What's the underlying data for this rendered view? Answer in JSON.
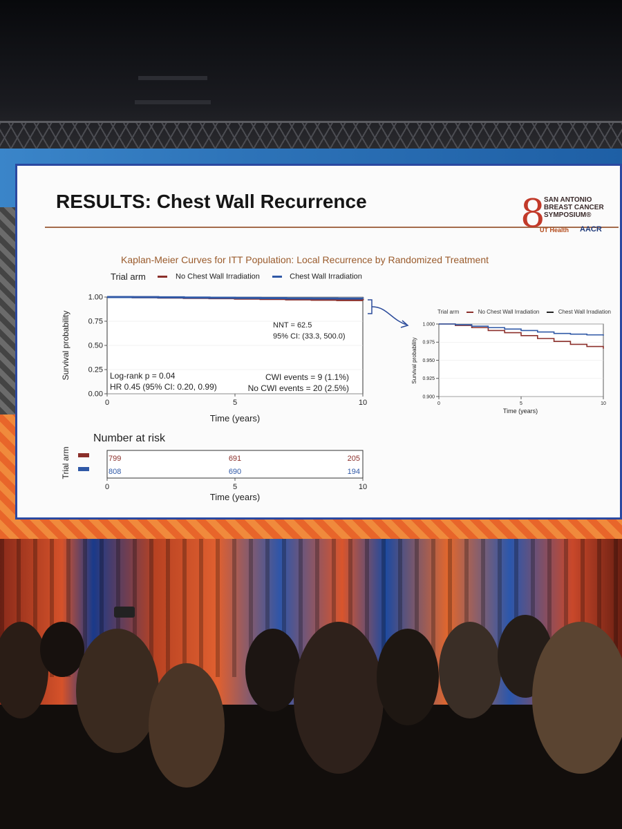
{
  "slide": {
    "title": "RESULTS: Chest Wall Recurrence",
    "subtitle": "Kaplan-Meier Curves for ITT Population:  Local Recurrence by Randomized Treatment",
    "logo": {
      "text_lines": [
        "SAN ANTONIO",
        "BREAST CANCER",
        "SYMPOSIUM®"
      ],
      "ut": "UT Health",
      "aacr": "AACR"
    },
    "legend": {
      "title": "Trial arm",
      "items": [
        "No Chest Wall Irradiation",
        "Chest Wall Irradiation"
      ]
    }
  },
  "colors": {
    "no_cwi": "#8b2f2a",
    "cwi": "#2f58a6"
  },
  "chart_data": [
    {
      "type": "line",
      "ylabel": "Survival probability",
      "xlabel": "Time (years)",
      "xlim": [
        0,
        10
      ],
      "ylim": [
        0,
        1
      ],
      "x_ticks": [
        0,
        5,
        10
      ],
      "y_ticks": [
        "0.00",
        "0.25",
        "0.50",
        "0.75",
        "1.00"
      ],
      "series": [
        {
          "name": "No Chest Wall Irradiation",
          "x": [
            0,
            1,
            2,
            3,
            4,
            5,
            6,
            7,
            8,
            9,
            10
          ],
          "y": [
            1.0,
            0.998,
            0.995,
            0.991,
            0.988,
            0.984,
            0.98,
            0.976,
            0.972,
            0.969,
            0.966
          ]
        },
        {
          "name": "Chest Wall Irradiation",
          "x": [
            0,
            1,
            2,
            3,
            4,
            5,
            6,
            7,
            8,
            9,
            10
          ],
          "y": [
            1.0,
            0.999,
            0.997,
            0.995,
            0.993,
            0.991,
            0.989,
            0.987,
            0.986,
            0.985,
            0.984
          ]
        }
      ],
      "annotations": {
        "nnt": "NNT = 62.5",
        "nnt_ci": "95% CI: (33.3, 500.0)",
        "logrank": "Log-rank p = 0.04",
        "hr": "HR 0.45 (95% CI: 0.20, 0.99)",
        "cwi_events": "CWI events = 9 (1.1%)",
        "no_cwi_events": "No CWI events = 20 (2.5%)"
      }
    },
    {
      "type": "line",
      "ylabel": "Survival probability",
      "xlabel": "Time (years)",
      "xlim": [
        0,
        10
      ],
      "ylim": [
        0.9,
        1.0
      ],
      "x_ticks": [
        0,
        5,
        10
      ],
      "y_ticks": [
        "0.900",
        "0.925",
        "0.950",
        "0.975",
        "1.000"
      ],
      "legend": {
        "title": "Trial arm",
        "items": [
          "No Chest Wall Irradiation",
          "Chest Wall Irradiation"
        ]
      },
      "series": [
        {
          "name": "No Chest Wall Irradiation",
          "x": [
            0,
            1,
            2,
            3,
            4,
            5,
            6,
            7,
            8,
            9,
            10
          ],
          "y": [
            1.0,
            0.998,
            0.995,
            0.991,
            0.988,
            0.984,
            0.98,
            0.976,
            0.972,
            0.969,
            0.966
          ]
        },
        {
          "name": "Chest Wall Irradiation",
          "x": [
            0,
            1,
            2,
            3,
            4,
            5,
            6,
            7,
            8,
            9,
            10
          ],
          "y": [
            1.0,
            0.999,
            0.997,
            0.995,
            0.993,
            0.991,
            0.989,
            0.987,
            0.986,
            0.985,
            0.984
          ]
        }
      ]
    },
    {
      "type": "table",
      "title": "Number at risk",
      "ylabel": "Trial arm",
      "xlabel": "Time (years)",
      "x_ticks": [
        0,
        5,
        10
      ],
      "rows": [
        {
          "color": "#8b2f2a",
          "values": [
            "799",
            "691",
            "205"
          ]
        },
        {
          "color": "#2f58a6",
          "values": [
            "808",
            "690",
            "194"
          ]
        }
      ]
    }
  ]
}
